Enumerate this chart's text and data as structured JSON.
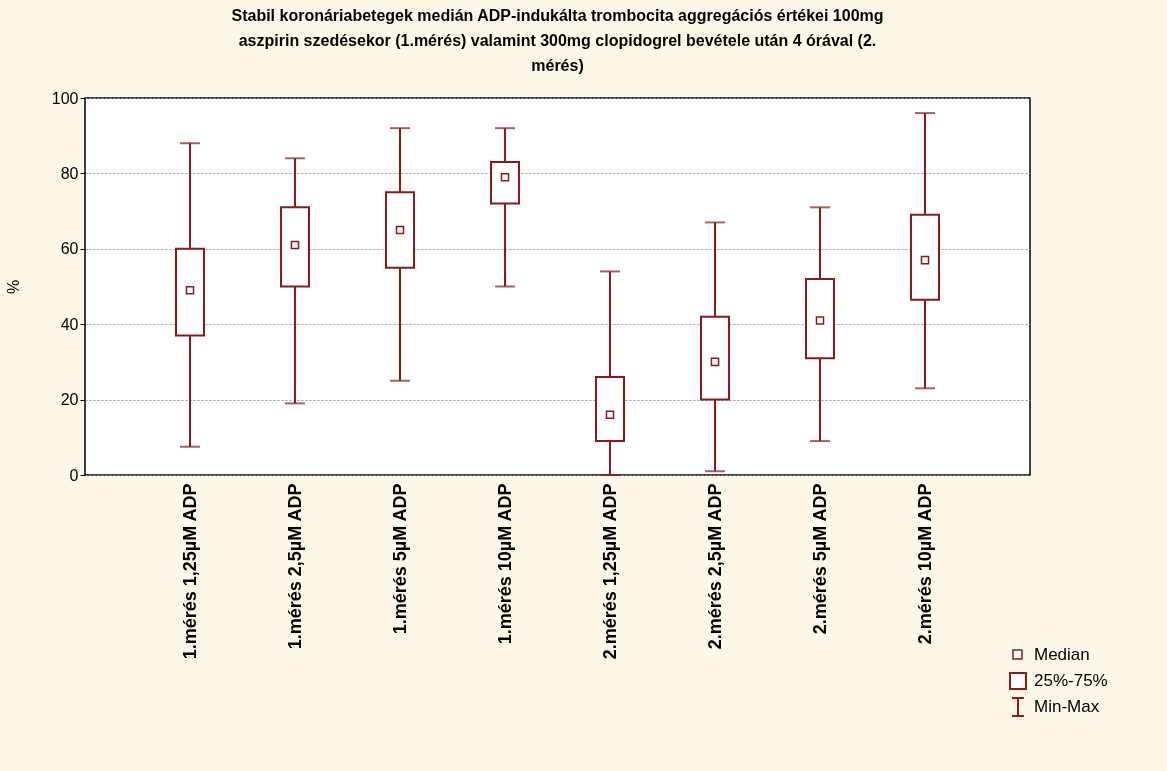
{
  "chart_data": {
    "type": "box",
    "title": "Stabil koronáriabetegek medián ADP-indukálta trombocita aggregációs értékei 100mg aszpirin szedésekor (1.mérés) valamint 300mg clopidogrel bevétele után 4 órával (2. mérés)",
    "ylabel": "%",
    "categories": [
      "1.mérés 1,25µM ADP",
      "1.mérés 2,5µM ADP",
      "1.mérés 5µM ADP",
      "1.mérés 10µM ADP",
      "2.mérés 1,25µM ADP",
      "2.mérés 2,5µM ADP",
      "2.mérés 5µM ADP",
      "2.mérés 10µM ADP"
    ],
    "boxes": [
      {
        "low": 7.5,
        "q1": 37,
        "median": 49,
        "q3": 60,
        "high": 88
      },
      {
        "low": 19,
        "q1": 50,
        "median": 61,
        "q3": 71,
        "high": 84
      },
      {
        "low": 25,
        "q1": 55,
        "median": 65,
        "q3": 75,
        "high": 92
      },
      {
        "low": 50,
        "q1": 72,
        "median": 79,
        "q3": 83,
        "high": 92
      },
      {
        "low": 0,
        "q1": 9,
        "median": 16,
        "q3": 26,
        "high": 54
      },
      {
        "low": 1,
        "q1": 20,
        "median": 30,
        "q3": 42,
        "high": 67
      },
      {
        "low": 9,
        "q1": 31,
        "median": 41,
        "q3": 52,
        "high": 71
      },
      {
        "low": 23,
        "q1": 46.5,
        "median": 57,
        "q3": 69,
        "high": 96
      }
    ],
    "color": "#8b1a1a",
    "ylim": [
      0,
      100
    ],
    "yticks": [
      0,
      20,
      40,
      60,
      80,
      100
    ],
    "grid": "y",
    "annotations": [
      "Median",
      "25%-75%",
      "Min-Max"
    ]
  }
}
